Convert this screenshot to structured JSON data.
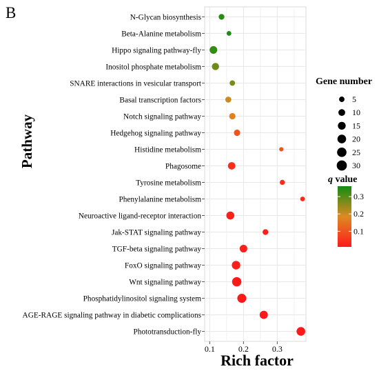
{
  "panel_label": "B",
  "chart_data": {
    "type": "scatter",
    "xlabel": "Rich factor",
    "ylabel": "Pathway",
    "xlim": [
      0.085,
      0.385
    ],
    "x_ticks": [
      0.1,
      0.2,
      0.3
    ],
    "grid": true,
    "legend_size_title": "Gene number",
    "legend_size_values": [
      5,
      10,
      15,
      20,
      25,
      30
    ],
    "legend_color_title_italic": "q",
    "legend_color_title_rest": " value",
    "legend_color_ticks": [
      0.1,
      0.2,
      0.3
    ],
    "color_range": [
      0.01,
      0.36
    ],
    "color_low": "#ff1a1a",
    "color_mid": "#dd8a22",
    "color_high": "#118c11",
    "categories": [
      "N-Glycan biosynthesis",
      "Beta-Alanine metabolism",
      "Hippo signaling pathway-fly",
      "Inositol phosphate metabolism",
      "SNARE interactions in vesicular transport",
      "Basal transcription factors",
      "Notch signaling pathway",
      "Hedgehog signaling pathway",
      "Histidine metabolism",
      "Phagosome",
      "Tyrosine metabolism",
      "Phenylalanine metabolism",
      "Neuroactive ligand-receptor interaction",
      "Jak-STAT signaling pathway",
      "TGF-beta signaling pathway",
      "FoxO signaling pathway",
      "Wnt signaling pathway",
      "Phosphatidylinositol signaling system",
      "AGE-RAGE signaling pathway in diabetic complications",
      "Phototransduction-fly"
    ],
    "points": [
      {
        "pathway": "N-Glycan biosynthesis",
        "rich_factor": 0.135,
        "gene_number": 6,
        "q_value": 0.34
      },
      {
        "pathway": "Beta-Alanine metabolism",
        "rich_factor": 0.157,
        "gene_number": 3,
        "q_value": 0.35
      },
      {
        "pathway": "Hippo signaling pathway-fly",
        "rich_factor": 0.111,
        "gene_number": 14,
        "q_value": 0.33
      },
      {
        "pathway": "Inositol phosphate metabolism",
        "rich_factor": 0.117,
        "gene_number": 12,
        "q_value": 0.28
      },
      {
        "pathway": "SNARE interactions in vesicular transport",
        "rich_factor": 0.167,
        "gene_number": 5,
        "q_value": 0.27
      },
      {
        "pathway": "Basal transcription factors",
        "rich_factor": 0.155,
        "gene_number": 7,
        "q_value": 0.2
      },
      {
        "pathway": "Notch signaling pathway",
        "rich_factor": 0.167,
        "gene_number": 8,
        "q_value": 0.17
      },
      {
        "pathway": "Hedgehog signaling pathway",
        "rich_factor": 0.181,
        "gene_number": 8,
        "q_value": 0.1
      },
      {
        "pathway": "Histidine metabolism",
        "rich_factor": 0.312,
        "gene_number": 2,
        "q_value": 0.1
      },
      {
        "pathway": "Phagosome",
        "rich_factor": 0.165,
        "gene_number": 13,
        "q_value": 0.04
      },
      {
        "pathway": "Tyrosine metabolism",
        "rich_factor": 0.315,
        "gene_number": 4,
        "q_value": 0.04
      },
      {
        "pathway": "Phenylalanine metabolism",
        "rich_factor": 0.375,
        "gene_number": 3,
        "q_value": 0.03
      },
      {
        "pathway": "Neuroactive ligand-receptor interaction",
        "rich_factor": 0.161,
        "gene_number": 16,
        "q_value": 0.02
      },
      {
        "pathway": "Jak-STAT signaling pathway",
        "rich_factor": 0.265,
        "gene_number": 6,
        "q_value": 0.02
      },
      {
        "pathway": "TGF-beta signaling pathway",
        "rich_factor": 0.2,
        "gene_number": 14,
        "q_value": 0.02
      },
      {
        "pathway": "FoxO signaling pathway",
        "rich_factor": 0.178,
        "gene_number": 19,
        "q_value": 0.02
      },
      {
        "pathway": "Wnt signaling pathway",
        "rich_factor": 0.18,
        "gene_number": 24,
        "q_value": 0.01
      },
      {
        "pathway": "Phosphatidylinositol signaling system",
        "rich_factor": 0.195,
        "gene_number": 22,
        "q_value": 0.01
      },
      {
        "pathway": "AGE-RAGE signaling pathway in diabetic complications",
        "rich_factor": 0.26,
        "gene_number": 17,
        "q_value": 0.01
      },
      {
        "pathway": "Phototransduction-fly",
        "rich_factor": 0.37,
        "gene_number": 20,
        "q_value": 0.01
      }
    ]
  }
}
